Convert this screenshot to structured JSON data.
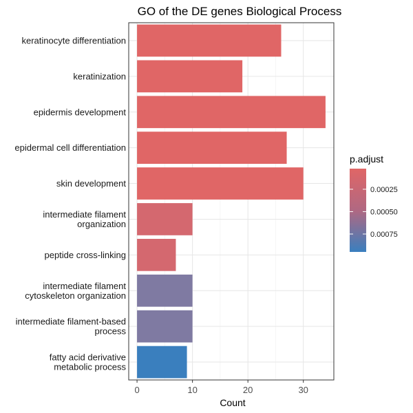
{
  "chart_data": {
    "type": "bar",
    "orientation": "horizontal",
    "title": "GO of the DE genes Biological Process",
    "xlabel": "Count",
    "ylabel": "",
    "xlim": [
      -1.5,
      35.5
    ],
    "xticks": [
      0,
      10,
      20,
      30
    ],
    "grid": true,
    "categories": [
      [
        "keratinocyte differentiation"
      ],
      [
        "keratinization"
      ],
      [
        "epidermis development"
      ],
      [
        "epidermal cell differentiation"
      ],
      [
        "skin development"
      ],
      [
        "intermediate filament",
        "organization"
      ],
      [
        "peptide cross-linking"
      ],
      [
        "intermediate filament",
        "cytoskeleton organization"
      ],
      [
        "intermediate filament-based",
        "process"
      ],
      [
        "fatty acid derivative",
        "metabolic process"
      ]
    ],
    "values": [
      26,
      19,
      34,
      27,
      30,
      10,
      7,
      10,
      10,
      9
    ],
    "p_adjust": [
      2e-05,
      2e-05,
      2e-05,
      2e-05,
      2e-05,
      9e-05,
      9e-05,
      0.00055,
      0.00055,
      0.00093
    ],
    "bar_colors": [
      "#E06666",
      "#E06666",
      "#E06666",
      "#E06666",
      "#E06666",
      "#D4686F",
      "#D4686F",
      "#7F7AA2",
      "#7F7AA2",
      "#3A7FBE"
    ],
    "legend": {
      "title": "p.adjust",
      "position": "right",
      "ticks": [
        "0.00025",
        "0.00050",
        "0.00075"
      ],
      "tick_values": [
        0.00025,
        0.0005,
        0.00075
      ],
      "range": [
        2e-05,
        0.00095
      ],
      "color_low": "#E06666",
      "color_high": "#3A7FBE"
    }
  }
}
